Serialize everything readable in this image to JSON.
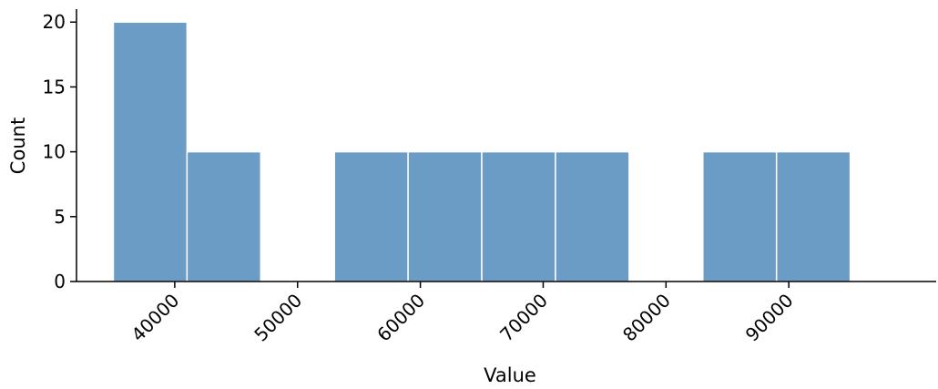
{
  "chart_data": {
    "type": "bar",
    "subtype": "histogram",
    "title": "",
    "xlabel": "Value",
    "ylabel": "Count",
    "bins": [
      {
        "start": 35000,
        "end": 41000,
        "count": 20
      },
      {
        "start": 41000,
        "end": 47000,
        "count": 10
      },
      {
        "start": 47000,
        "end": 53000,
        "count": 0
      },
      {
        "start": 53000,
        "end": 59000,
        "count": 10
      },
      {
        "start": 59000,
        "end": 65000,
        "count": 10
      },
      {
        "start": 65000,
        "end": 71000,
        "count": 10
      },
      {
        "start": 71000,
        "end": 77000,
        "count": 10
      },
      {
        "start": 77000,
        "end": 83000,
        "count": 0
      },
      {
        "start": 83000,
        "end": 89000,
        "count": 10
      },
      {
        "start": 89000,
        "end": 95000,
        "count": 10
      }
    ],
    "xticks": [
      40000,
      50000,
      60000,
      70000,
      80000,
      90000
    ],
    "yticks": [
      0,
      5,
      10,
      15,
      20
    ],
    "xlim": [
      32000,
      102000
    ],
    "ylim": [
      0,
      21
    ],
    "bar_color": "#6a9cc6",
    "bar_edge_color": "#ffffff",
    "grid": false,
    "legend": false
  }
}
